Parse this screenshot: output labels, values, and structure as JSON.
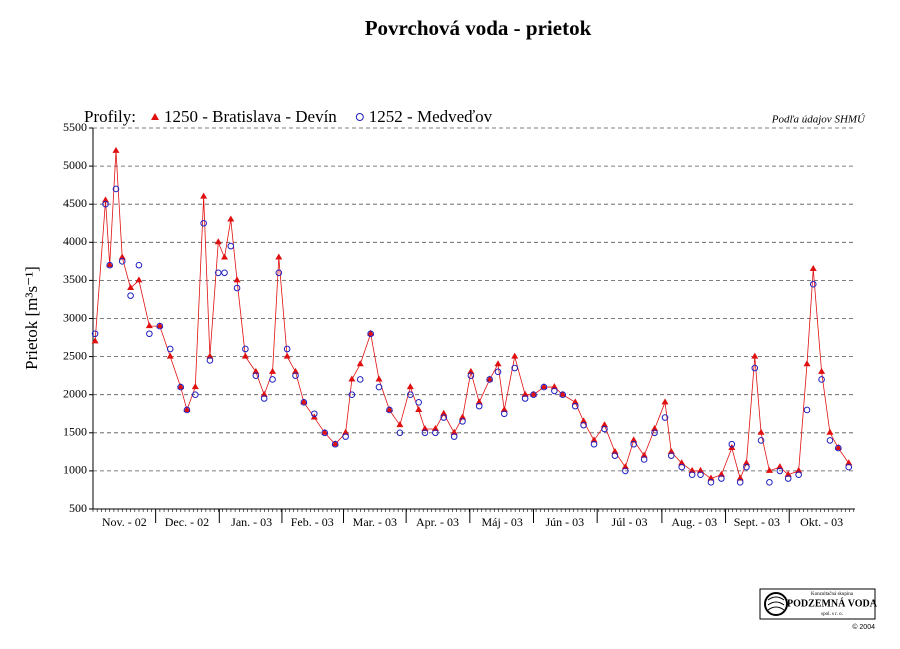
{
  "chart_data": {
    "type": "line",
    "title": "Povrchová voda - prietok",
    "legend_label": "Profily:",
    "source": "Podľa údajov SHMÚ",
    "y_label": "Prietok [m³s⁻¹]",
    "x": [
      1,
      6,
      8,
      11,
      14,
      18,
      22,
      27,
      32,
      37,
      42,
      45,
      49,
      53,
      56,
      60,
      63,
      66,
      69,
      73,
      78,
      82,
      86,
      89,
      93,
      97,
      101,
      106,
      111,
      116,
      121,
      124,
      128,
      133,
      137,
      142,
      147,
      152,
      156,
      159,
      164,
      168,
      173,
      177,
      181,
      185,
      190,
      194,
      197,
      202,
      207,
      211,
      216,
      221,
      225,
      231,
      235,
      240,
      245,
      250,
      255,
      259,
      264,
      269,
      274,
      277,
      282,
      287,
      291,
      296,
      301,
      306,
      310,
      313,
      317,
      320,
      324,
      329,
      333,
      338,
      342,
      345,
      349,
      353,
      357,
      362
    ],
    "xlim": [
      0,
      365
    ],
    "xticks": [
      {
        "value": 15,
        "label": "Nov. - 02"
      },
      {
        "value": 45,
        "label": "Dec. - 02"
      },
      {
        "value": 76,
        "label": "Jan. - 03"
      },
      {
        "value": 105,
        "label": "Feb. - 03"
      },
      {
        "value": 135,
        "label": "Mar. - 03"
      },
      {
        "value": 165,
        "label": "Apr. - 03"
      },
      {
        "value": 196,
        "label": "Máj - 03"
      },
      {
        "value": 226,
        "label": "Jún - 03"
      },
      {
        "value": 257,
        "label": "Júl - 03"
      },
      {
        "value": 288,
        "label": "Aug. - 03"
      },
      {
        "value": 318,
        "label": "Sept. - 03"
      },
      {
        "value": 349,
        "label": "Okt. - 03"
      }
    ],
    "ylim": [
      500,
      5500
    ],
    "yticks": [
      500,
      1000,
      1500,
      2000,
      2500,
      3000,
      3500,
      4000,
      4500,
      5000,
      5500
    ],
    "grid": true,
    "series": [
      {
        "name": "1250 - Bratislava - Devín",
        "color": "#e01010",
        "marker": "triangle",
        "line": true,
        "values": [
          2700,
          4550,
          3700,
          5200,
          3800,
          3400,
          3500,
          2900,
          2900,
          2500,
          2100,
          1800,
          2100,
          4600,
          2500,
          4000,
          3800,
          4300,
          3500,
          2500,
          2300,
          2000,
          2300,
          3800,
          2500,
          2300,
          1900,
          1700,
          1500,
          1350,
          1500,
          2200,
          2400,
          2800,
          2200,
          1800,
          1600,
          2100,
          1800,
          1550,
          1550,
          1750,
          1500,
          1700,
          2300,
          1900,
          2200,
          2400,
          1800,
          2500,
          2000,
          2000,
          2100,
          2100,
          2000,
          1900,
          1650,
          1400,
          1600,
          1250,
          1050,
          1400,
          1200,
          1550,
          1900,
          1250,
          1100,
          1000,
          1000,
          900,
          950,
          1300,
          900,
          1100,
          2500,
          1500,
          1000,
          1050,
          950,
          1000,
          2400,
          3650,
          2300,
          1500,
          1300,
          1100
        ]
      },
      {
        "name": "1252 - Medveďov",
        "color": "#2020c0",
        "marker": "circle",
        "line": false,
        "values": [
          2800,
          4500,
          3700,
          4700,
          3750,
          3300,
          3700,
          2800,
          2900,
          2600,
          2100,
          1800,
          2000,
          4250,
          2450,
          3600,
          3600,
          3950,
          3400,
          2600,
          2250,
          1950,
          2200,
          3600,
          2600,
          2250,
          1900,
          1750,
          1500,
          1350,
          1450,
          2000,
          2200,
          2800,
          2100,
          1800,
          1500,
          2000,
          1900,
          1500,
          1500,
          1700,
          1450,
          1650,
          2250,
          1850,
          2200,
          2300,
          1750,
          2350,
          1950,
          2000,
          2100,
          2050,
          2000,
          1850,
          1600,
          1350,
          1550,
          1200,
          1000,
          1350,
          1150,
          1500,
          1700,
          1200,
          1050,
          950,
          950,
          850,
          900,
          1350,
          850,
          1050,
          2350,
          1400,
          850,
          1000,
          900,
          950,
          1800,
          3450,
          2200,
          1400,
          1300,
          1050
        ]
      }
    ],
    "logo": {
      "line1": "Konzultačná skupina",
      "line2": "PODZEMNÁ VODA",
      "line3": "spol. s r. o.",
      "copyright": "© 2004"
    }
  }
}
